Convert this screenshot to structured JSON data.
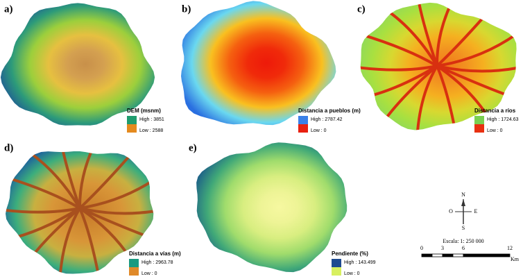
{
  "panels": [
    {
      "label": "a)",
      "legend_title": "DEM (msnm)",
      "high": "High : 3851",
      "low": "Low : 2588"
    },
    {
      "label": "b)",
      "legend_title": "Distancia a pueblos (m)",
      "high": "High : 2787.42",
      "low": "Low : 0"
    },
    {
      "label": "c)",
      "legend_title": "Distancia a ríos",
      "high": "High : 1724.63",
      "low": "Low : 0"
    },
    {
      "label": "d)",
      "legend_title": "Distancia a vías (m)",
      "high": "High : 2963.78",
      "low": "Low : 0"
    },
    {
      "label": "e)",
      "legend_title": "Pendiente (%)",
      "high": "High : 143.499",
      "low": "Low : 0"
    }
  ],
  "north_arrow": {
    "n": "N",
    "s": "S",
    "e": "E",
    "w": "O"
  },
  "scale": {
    "text": "Escala: 1: 250 000",
    "ticks": [
      "0",
      "3",
      "6",
      "12"
    ],
    "unit": "Km"
  }
}
